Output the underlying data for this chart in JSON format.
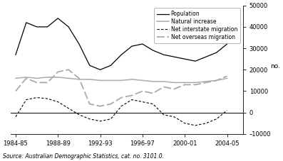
{
  "title": "",
  "ylabel": "no.",
  "source_text": "Source: Australian Demographic Statistics, cat. no. 3101.0.",
  "x_values": [
    1984,
    1985,
    1986,
    1987,
    1988,
    1989,
    1990,
    1991,
    1992,
    1993,
    1994,
    1995,
    1996,
    1997,
    1998,
    1999,
    2000,
    2001,
    2002,
    2003,
    2004
  ],
  "population": [
    27000,
    42000,
    40000,
    40000,
    44000,
    40000,
    32000,
    22000,
    20000,
    22000,
    27000,
    31000,
    32000,
    29000,
    27000,
    26000,
    25000,
    24000,
    26000,
    28000,
    32000
  ],
  "natural_increase": [
    16000,
    16500,
    16000,
    16500,
    16500,
    16000,
    15500,
    15500,
    15000,
    15000,
    15000,
    15500,
    15000,
    14500,
    14500,
    14000,
    14000,
    14000,
    14500,
    15000,
    16000
  ],
  "net_interstate": [
    -2000,
    6000,
    7000,
    6500,
    5000,
    2000,
    -1000,
    -3000,
    -4000,
    -3000,
    3000,
    6000,
    5000,
    4000,
    -1000,
    -2000,
    -5000,
    -6000,
    -5000,
    -3000,
    1000
  ],
  "net_overseas": [
    10000,
    16000,
    14000,
    14000,
    19000,
    20000,
    16000,
    4000,
    3000,
    4000,
    7000,
    8000,
    10000,
    9000,
    12000,
    11000,
    13000,
    13000,
    14000,
    15000,
    17000
  ],
  "ylim": [
    -10000,
    50000
  ],
  "yticks": [
    -10000,
    0,
    10000,
    20000,
    30000,
    40000,
    50000
  ],
  "xtick_positions": [
    1984,
    1988,
    1992,
    1996,
    2000,
    2004
  ],
  "xtick_labels": [
    "1984-85",
    "1988-89",
    "1992-93",
    "1996-97",
    "2000-01",
    "2004-05"
  ],
  "population_color": "#000000",
  "natural_increase_color": "#aaaaaa",
  "net_interstate_color": "#000000",
  "net_overseas_color": "#aaaaaa",
  "bg_color": "#ffffff"
}
